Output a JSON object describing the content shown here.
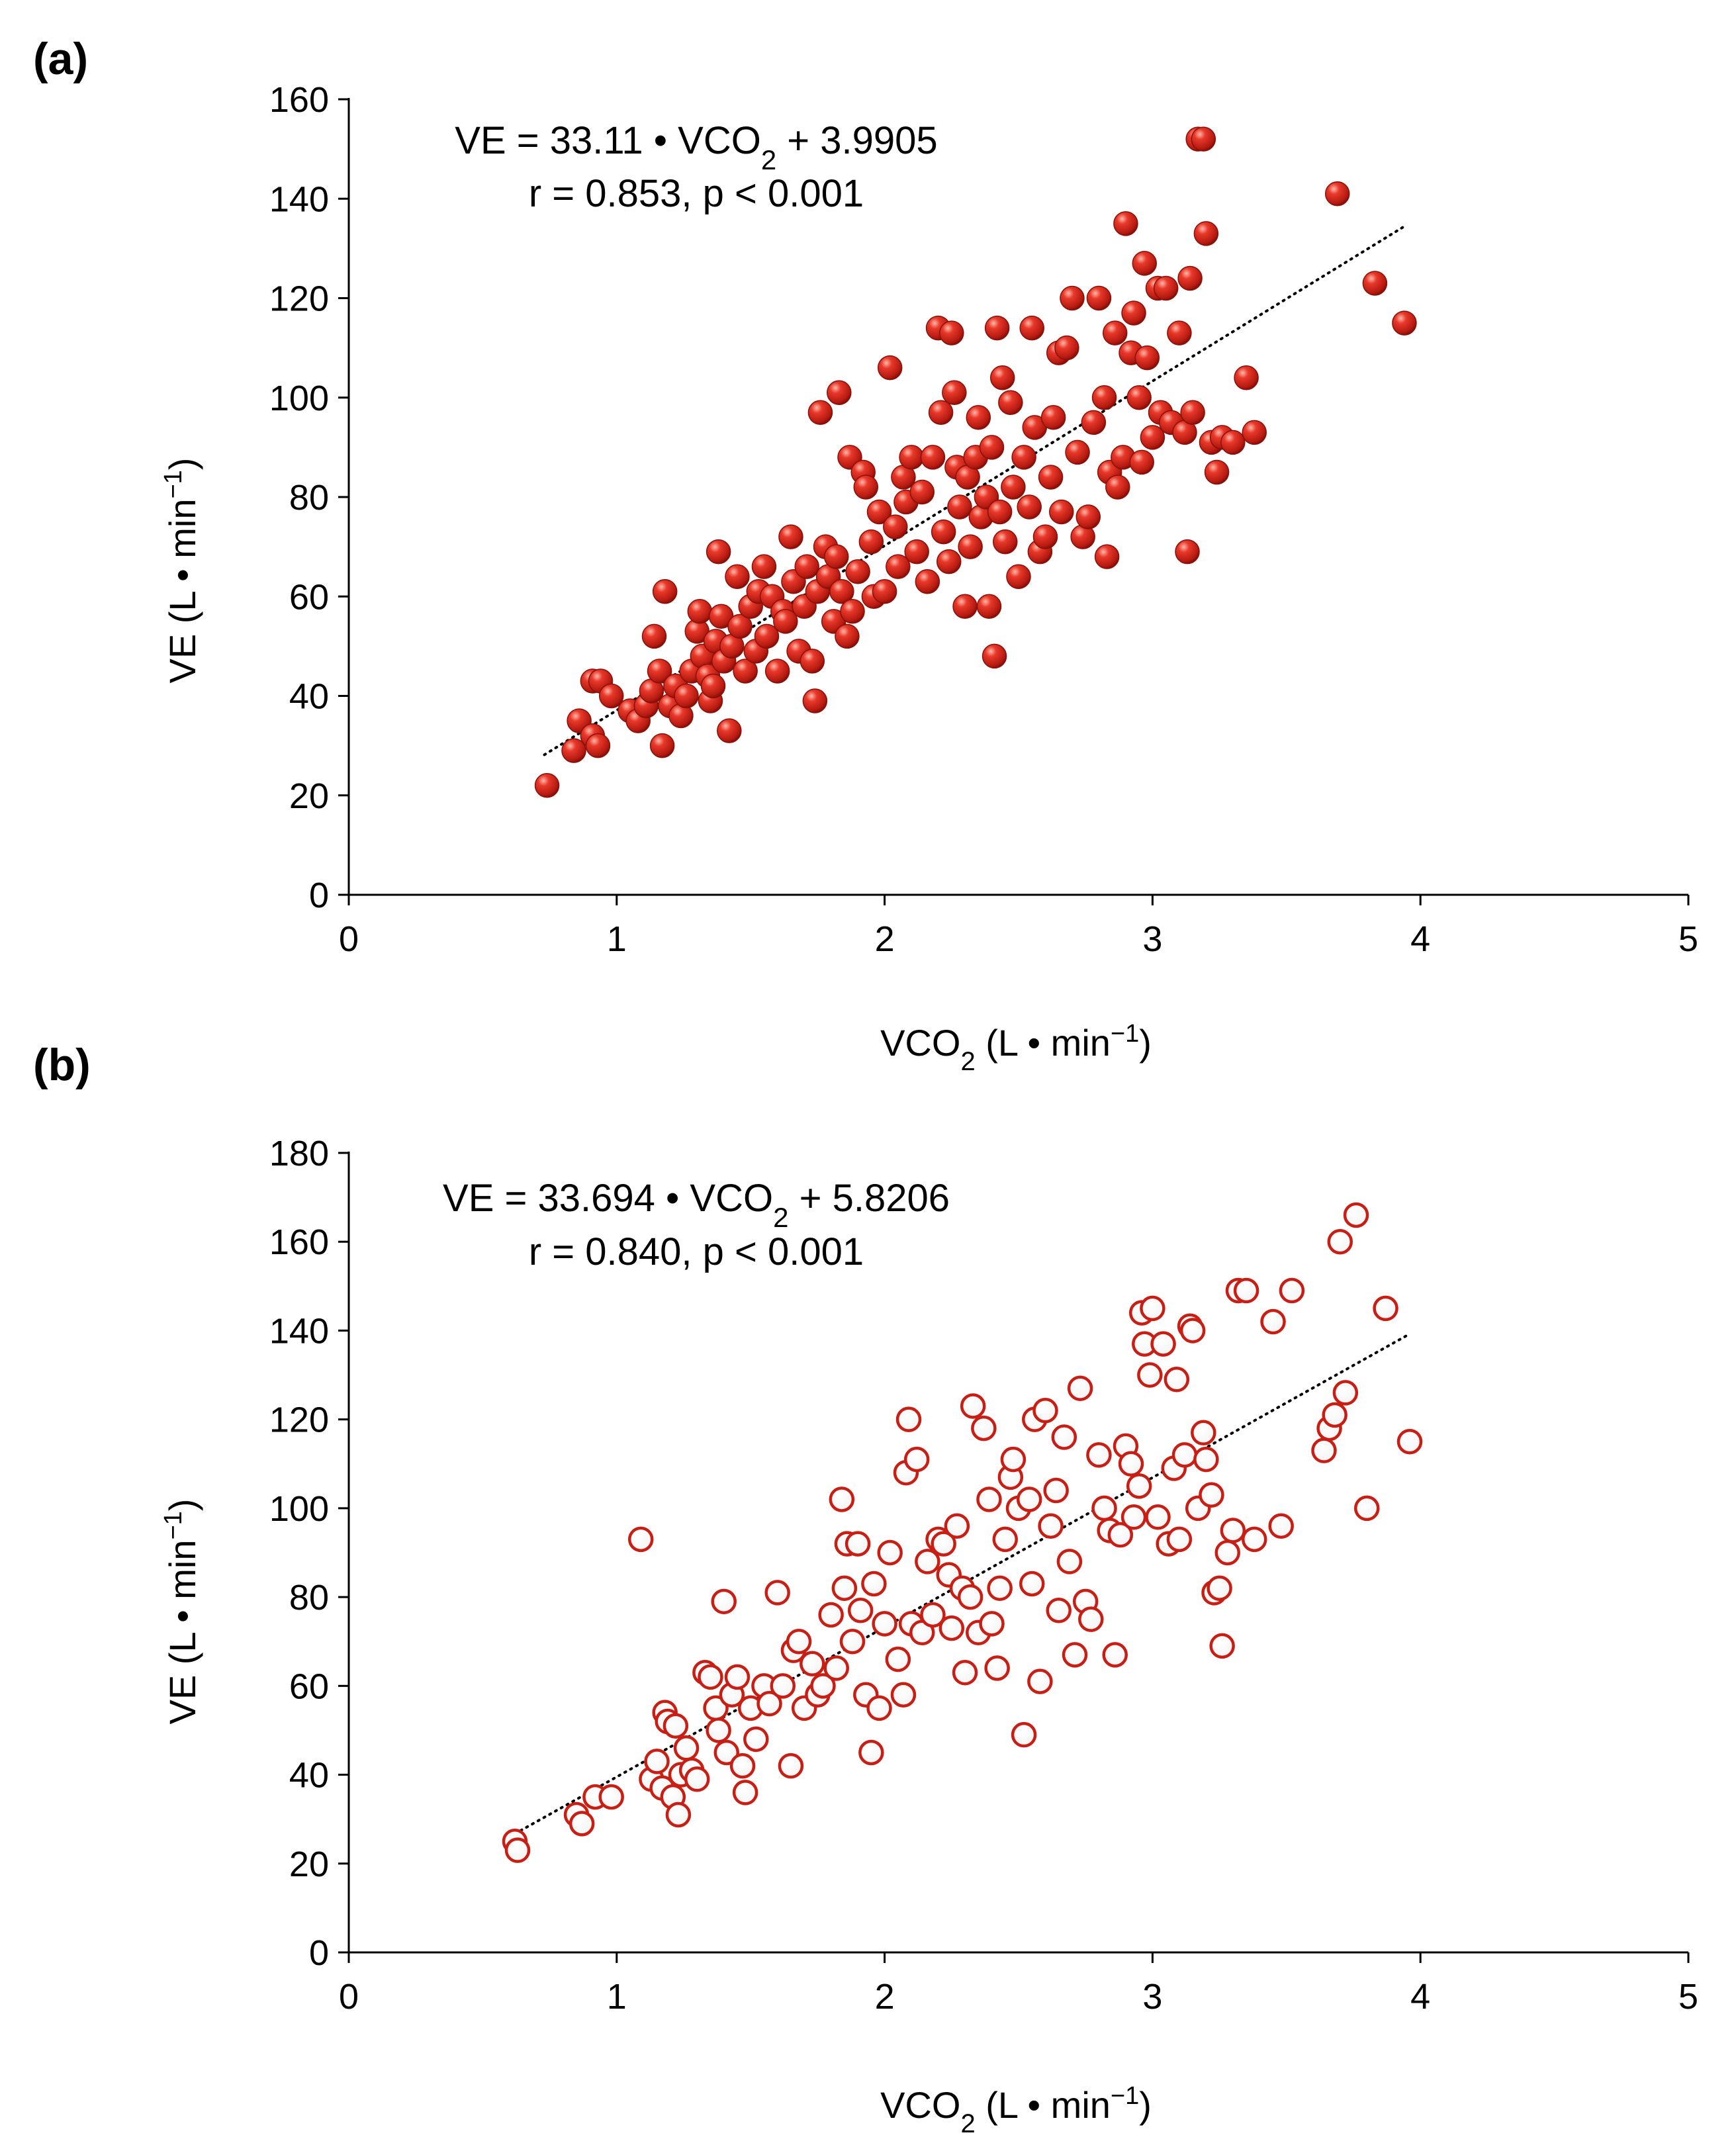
{
  "chart_data": [
    {
      "type": "scatter",
      "panel_label": "(a)",
      "marker": "filled",
      "marker_color": "#c81e14",
      "xlabel": {
        "main": "VCO",
        "sub": "2",
        "unit": " (L • min",
        "sup": "−1",
        "close": ")"
      },
      "ylabel": {
        "main": "VE (L • min",
        "sup": "−1",
        "close": ")"
      },
      "xlim": [
        0,
        5
      ],
      "ylim": [
        0,
        160
      ],
      "xticks": [
        0,
        1,
        2,
        3,
        4,
        5
      ],
      "yticks": [
        0,
        20,
        40,
        60,
        80,
        100,
        120,
        140,
        160
      ],
      "xtick_labels": [
        "0",
        "1",
        "2",
        "3",
        "4",
        "5"
      ],
      "ytick_labels": [
        "0",
        "20",
        "40",
        "60",
        "80",
        "100",
        "120",
        "140",
        "160"
      ],
      "equation": {
        "pre": "VE = 33.11 • VCO",
        "sub": "2",
        "post": " + 3.9905"
      },
      "stats": "r = 0.853, p < 0.001",
      "trendline": {
        "slope": 33.11,
        "intercept": 3.9905,
        "x_range": [
          0.73,
          3.95
        ]
      },
      "points": [
        [
          0.74,
          22
        ],
        [
          0.84,
          29
        ],
        [
          0.86,
          35
        ],
        [
          0.91,
          32
        ],
        [
          0.93,
          30
        ],
        [
          0.91,
          43
        ],
        [
          0.94,
          43
        ],
        [
          0.98,
          40
        ],
        [
          1.05,
          37
        ],
        [
          1.08,
          35
        ],
        [
          1.11,
          38
        ],
        [
          1.13,
          41
        ],
        [
          1.14,
          52
        ],
        [
          1.16,
          45
        ],
        [
          1.17,
          30
        ],
        [
          1.18,
          61
        ],
        [
          1.2,
          38
        ],
        [
          1.22,
          42
        ],
        [
          1.24,
          36
        ],
        [
          1.26,
          40
        ],
        [
          1.28,
          45
        ],
        [
          1.3,
          53
        ],
        [
          1.31,
          57
        ],
        [
          1.32,
          48
        ],
        [
          1.34,
          44
        ],
        [
          1.35,
          39
        ],
        [
          1.36,
          42
        ],
        [
          1.37,
          51
        ],
        [
          1.38,
          69
        ],
        [
          1.39,
          56
        ],
        [
          1.4,
          47
        ],
        [
          1.42,
          33
        ],
        [
          1.43,
          50
        ],
        [
          1.45,
          64
        ],
        [
          1.46,
          54
        ],
        [
          1.48,
          45
        ],
        [
          1.5,
          58
        ],
        [
          1.52,
          49
        ],
        [
          1.53,
          61
        ],
        [
          1.55,
          66
        ],
        [
          1.56,
          52
        ],
        [
          1.58,
          60
        ],
        [
          1.6,
          45
        ],
        [
          1.62,
          57
        ],
        [
          1.63,
          55
        ],
        [
          1.65,
          72
        ],
        [
          1.66,
          63
        ],
        [
          1.68,
          49
        ],
        [
          1.7,
          58
        ],
        [
          1.71,
          66
        ],
        [
          1.73,
          47
        ],
        [
          1.74,
          39
        ],
        [
          1.75,
          61
        ],
        [
          1.76,
          97
        ],
        [
          1.78,
          70
        ],
        [
          1.79,
          64
        ],
        [
          1.81,
          55
        ],
        [
          1.82,
          68
        ],
        [
          1.83,
          101
        ],
        [
          1.84,
          61
        ],
        [
          1.86,
          52
        ],
        [
          1.87,
          88
        ],
        [
          1.88,
          57
        ],
        [
          1.9,
          65
        ],
        [
          1.92,
          85
        ],
        [
          1.93,
          82
        ],
        [
          1.95,
          71
        ],
        [
          1.96,
          60
        ],
        [
          1.98,
          77
        ],
        [
          2.0,
          61
        ],
        [
          2.02,
          106
        ],
        [
          2.04,
          74
        ],
        [
          2.05,
          66
        ],
        [
          2.07,
          84
        ],
        [
          2.08,
          79
        ],
        [
          2.1,
          88
        ],
        [
          2.12,
          69
        ],
        [
          2.14,
          81
        ],
        [
          2.16,
          63
        ],
        [
          2.18,
          88
        ],
        [
          2.2,
          114
        ],
        [
          2.21,
          97
        ],
        [
          2.22,
          73
        ],
        [
          2.24,
          67
        ],
        [
          2.25,
          113
        ],
        [
          2.26,
          101
        ],
        [
          2.27,
          86
        ],
        [
          2.28,
          78
        ],
        [
          2.3,
          58
        ],
        [
          2.31,
          84
        ],
        [
          2.32,
          70
        ],
        [
          2.34,
          88
        ],
        [
          2.35,
          96
        ],
        [
          2.36,
          76
        ],
        [
          2.38,
          80
        ],
        [
          2.39,
          58
        ],
        [
          2.4,
          90
        ],
        [
          2.41,
          48
        ],
        [
          2.42,
          114
        ],
        [
          2.43,
          77
        ],
        [
          2.44,
          104
        ],
        [
          2.45,
          71
        ],
        [
          2.47,
          99
        ],
        [
          2.48,
          82
        ],
        [
          2.5,
          64
        ],
        [
          2.52,
          88
        ],
        [
          2.54,
          78
        ],
        [
          2.55,
          114
        ],
        [
          2.56,
          94
        ],
        [
          2.58,
          69
        ],
        [
          2.6,
          72
        ],
        [
          2.62,
          84
        ],
        [
          2.63,
          96
        ],
        [
          2.65,
          109
        ],
        [
          2.66,
          77
        ],
        [
          2.68,
          110
        ],
        [
          2.7,
          120
        ],
        [
          2.72,
          89
        ],
        [
          2.74,
          72
        ],
        [
          2.76,
          76
        ],
        [
          2.78,
          95
        ],
        [
          2.8,
          120
        ],
        [
          2.82,
          100
        ],
        [
          2.83,
          68
        ],
        [
          2.84,
          85
        ],
        [
          2.86,
          113
        ],
        [
          2.87,
          82
        ],
        [
          2.89,
          88
        ],
        [
          2.9,
          135
        ],
        [
          2.92,
          109
        ],
        [
          2.93,
          117
        ],
        [
          2.95,
          100
        ],
        [
          2.96,
          87
        ],
        [
          2.97,
          127
        ],
        [
          2.98,
          108
        ],
        [
          3.0,
          92
        ],
        [
          3.02,
          122
        ],
        [
          3.03,
          97
        ],
        [
          3.05,
          122
        ],
        [
          3.07,
          95
        ],
        [
          3.1,
          113
        ],
        [
          3.12,
          93
        ],
        [
          3.13,
          69
        ],
        [
          3.14,
          124
        ],
        [
          3.15,
          97
        ],
        [
          3.17,
          152
        ],
        [
          3.19,
          152
        ],
        [
          3.2,
          133
        ],
        [
          3.22,
          91
        ],
        [
          3.24,
          85
        ],
        [
          3.26,
          92
        ],
        [
          3.3,
          91
        ],
        [
          3.35,
          104
        ],
        [
          3.38,
          93
        ],
        [
          3.69,
          141
        ],
        [
          3.83,
          123
        ],
        [
          3.94,
          115
        ]
      ]
    },
    {
      "type": "scatter",
      "panel_label": "(b)",
      "marker": "open",
      "marker_color": "#c81e14",
      "xlabel": {
        "main": "VCO",
        "sub": "2",
        "unit": " (L • min",
        "sup": "−1",
        "close": ")"
      },
      "ylabel": {
        "main": "VE (L • min",
        "sup": "−1",
        "close": ")"
      },
      "xlim": [
        0,
        5
      ],
      "ylim": [
        0,
        180
      ],
      "xticks": [
        0,
        1,
        2,
        3,
        4,
        5
      ],
      "yticks": [
        0,
        20,
        40,
        60,
        80,
        100,
        120,
        140,
        160,
        180
      ],
      "xtick_labels": [
        "0",
        "1",
        "2",
        "3",
        "4",
        "5"
      ],
      "ytick_labels": [
        "0",
        "20",
        "40",
        "60",
        "80",
        "100",
        "120",
        "140",
        "160",
        "180"
      ],
      "equation": {
        "pre": "VE = 33.694 • VCO",
        "sub": "2",
        "post": " + 5.8206"
      },
      "stats": "r = 0.840, p < 0.001",
      "trendline": {
        "slope": 33.694,
        "intercept": 5.8206,
        "x_range": [
          0.62,
          3.96
        ]
      },
      "points": [
        [
          0.62,
          25
        ],
        [
          0.63,
          23
        ],
        [
          0.85,
          31
        ],
        [
          0.87,
          29
        ],
        [
          0.92,
          35
        ],
        [
          0.98,
          35
        ],
        [
          1.09,
          93
        ],
        [
          1.13,
          39
        ],
        [
          1.15,
          43
        ],
        [
          1.17,
          37
        ],
        [
          1.18,
          54
        ],
        [
          1.19,
          52
        ],
        [
          1.21,
          35
        ],
        [
          1.22,
          51
        ],
        [
          1.23,
          31
        ],
        [
          1.24,
          40
        ],
        [
          1.26,
          46
        ],
        [
          1.28,
          41
        ],
        [
          1.3,
          39
        ],
        [
          1.33,
          63
        ],
        [
          1.35,
          62
        ],
        [
          1.37,
          55
        ],
        [
          1.38,
          50
        ],
        [
          1.4,
          79
        ],
        [
          1.41,
          45
        ],
        [
          1.43,
          58
        ],
        [
          1.45,
          62
        ],
        [
          1.47,
          42
        ],
        [
          1.48,
          36
        ],
        [
          1.5,
          55
        ],
        [
          1.52,
          48
        ],
        [
          1.55,
          60
        ],
        [
          1.57,
          56
        ],
        [
          1.6,
          81
        ],
        [
          1.62,
          60
        ],
        [
          1.65,
          42
        ],
        [
          1.66,
          68
        ],
        [
          1.68,
          70
        ],
        [
          1.7,
          55
        ],
        [
          1.73,
          65
        ],
        [
          1.75,
          58
        ],
        [
          1.77,
          60
        ],
        [
          1.8,
          76
        ],
        [
          1.82,
          64
        ],
        [
          1.84,
          102
        ],
        [
          1.85,
          82
        ],
        [
          1.86,
          92
        ],
        [
          1.88,
          70
        ],
        [
          1.9,
          92
        ],
        [
          1.91,
          77
        ],
        [
          1.93,
          58
        ],
        [
          1.95,
          45
        ],
        [
          1.96,
          83
        ],
        [
          1.98,
          55
        ],
        [
          2.0,
          74
        ],
        [
          2.02,
          90
        ],
        [
          2.05,
          66
        ],
        [
          2.07,
          58
        ],
        [
          2.08,
          108
        ],
        [
          2.09,
          120
        ],
        [
          2.1,
          74
        ],
        [
          2.12,
          111
        ],
        [
          2.14,
          72
        ],
        [
          2.16,
          88
        ],
        [
          2.18,
          76
        ],
        [
          2.2,
          93
        ],
        [
          2.22,
          92
        ],
        [
          2.24,
          85
        ],
        [
          2.25,
          73
        ],
        [
          2.27,
          96
        ],
        [
          2.29,
          82
        ],
        [
          2.3,
          63
        ],
        [
          2.32,
          80
        ],
        [
          2.33,
          123
        ],
        [
          2.35,
          72
        ],
        [
          2.37,
          118
        ],
        [
          2.39,
          102
        ],
        [
          2.4,
          74
        ],
        [
          2.42,
          64
        ],
        [
          2.43,
          82
        ],
        [
          2.45,
          93
        ],
        [
          2.47,
          107
        ],
        [
          2.48,
          111
        ],
        [
          2.5,
          100
        ],
        [
          2.52,
          49
        ],
        [
          2.54,
          102
        ],
        [
          2.55,
          83
        ],
        [
          2.56,
          120
        ],
        [
          2.58,
          61
        ],
        [
          2.6,
          122
        ],
        [
          2.62,
          96
        ],
        [
          2.64,
          104
        ],
        [
          2.65,
          77
        ],
        [
          2.67,
          116
        ],
        [
          2.69,
          88
        ],
        [
          2.71,
          67
        ],
        [
          2.73,
          127
        ],
        [
          2.75,
          79
        ],
        [
          2.77,
          75
        ],
        [
          2.8,
          112
        ],
        [
          2.82,
          100
        ],
        [
          2.84,
          95
        ],
        [
          2.86,
          67
        ],
        [
          2.88,
          94
        ],
        [
          2.9,
          114
        ],
        [
          2.92,
          110
        ],
        [
          2.93,
          98
        ],
        [
          2.95,
          105
        ],
        [
          2.96,
          144
        ],
        [
          2.97,
          137
        ],
        [
          2.99,
          130
        ],
        [
          3.0,
          145
        ],
        [
          3.02,
          98
        ],
        [
          3.04,
          137
        ],
        [
          3.06,
          92
        ],
        [
          3.08,
          109
        ],
        [
          3.09,
          129
        ],
        [
          3.1,
          93
        ],
        [
          3.12,
          112
        ],
        [
          3.14,
          141
        ],
        [
          3.15,
          140
        ],
        [
          3.17,
          100
        ],
        [
          3.19,
          117
        ],
        [
          3.2,
          111
        ],
        [
          3.22,
          103
        ],
        [
          3.23,
          81
        ],
        [
          3.25,
          82
        ],
        [
          3.26,
          69
        ],
        [
          3.28,
          90
        ],
        [
          3.3,
          95
        ],
        [
          3.32,
          149
        ],
        [
          3.35,
          149
        ],
        [
          3.38,
          93
        ],
        [
          3.45,
          142
        ],
        [
          3.48,
          96
        ],
        [
          3.52,
          149
        ],
        [
          3.64,
          113
        ],
        [
          3.66,
          118
        ],
        [
          3.68,
          121
        ],
        [
          3.7,
          160
        ],
        [
          3.72,
          126
        ],
        [
          3.76,
          166
        ],
        [
          3.8,
          100
        ],
        [
          3.87,
          145
        ],
        [
          3.96,
          115
        ]
      ]
    }
  ]
}
